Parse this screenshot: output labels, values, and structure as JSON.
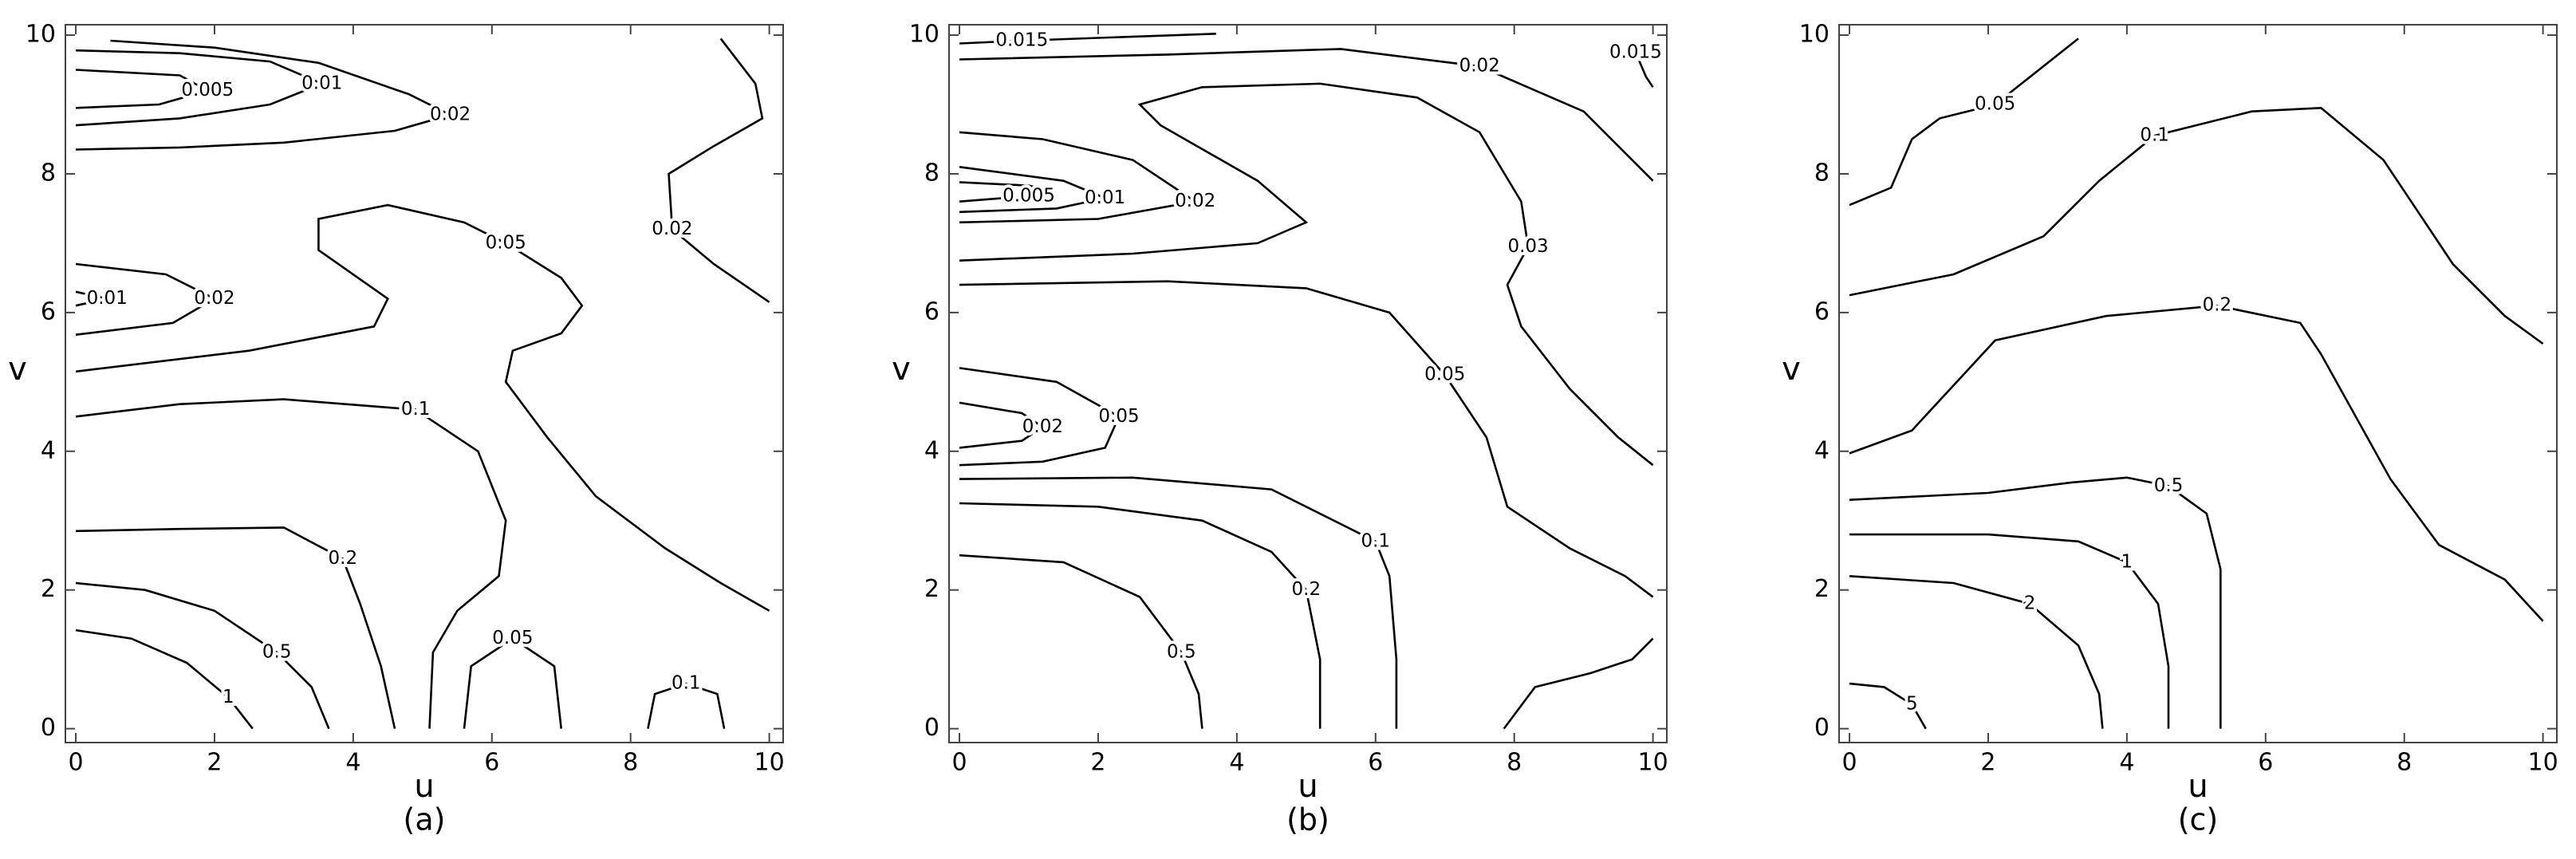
{
  "chart_data": [
    {
      "type": "contour",
      "caption": "(a)",
      "xlabel": "u",
      "ylabel": "v",
      "xlim": [
        -0.15,
        10.2
      ],
      "ylim": [
        -0.2,
        10.15
      ],
      "xticks": [
        0,
        2,
        4,
        6,
        8,
        10
      ],
      "yticks": [
        0,
        2,
        4,
        6,
        8,
        10
      ],
      "color": "#000000",
      "contours": [
        {
          "level": 0.005,
          "x": [
            0,
            1.2,
            1.9,
            1.5,
            0
          ],
          "y": [
            8.95,
            9.0,
            9.2,
            9.42,
            9.5
          ]
        },
        {
          "level": 0.01,
          "x": [
            0,
            0.45,
            0,
            null,
            0,
            1.5,
            2.8,
            3.55,
            2.8,
            1.5,
            0
          ],
          "y": [
            6.3,
            6.2,
            6.1,
            null,
            8.7,
            8.8,
            9.0,
            9.3,
            9.62,
            9.74,
            9.78
          ]
        },
        {
          "level": 0.02,
          "x": [
            0,
            1.3,
            2.0,
            1.4,
            0,
            null,
            0.5,
            2,
            3.5,
            4.8,
            5.4,
            4.6,
            3,
            1.5,
            0,
            null,
            9.3,
            9.8,
            9.9,
            9.2,
            8.55,
            8.6,
            9.2,
            10
          ],
          "y": [
            6.7,
            6.55,
            6.2,
            5.85,
            5.68,
            null,
            9.92,
            9.82,
            9.6,
            9.15,
            8.85,
            8.62,
            8.45,
            8.38,
            8.35,
            null,
            9.95,
            9.3,
            8.8,
            8.4,
            8.0,
            7.2,
            6.7,
            6.15
          ]
        },
        {
          "level": 0.05,
          "x": [
            0,
            2.5,
            4.3,
            4.5,
            3.5,
            3.5,
            4.5,
            5.6,
            6.2,
            7.0,
            7.3,
            7.0,
            6.3,
            6.2,
            6.8,
            7.5,
            8.5,
            9.3,
            10,
            null,
            5.6,
            5.7,
            6.3,
            6.9,
            7.0
          ],
          "y": [
            5.15,
            5.45,
            5.8,
            6.2,
            6.9,
            7.35,
            7.55,
            7.3,
            7.0,
            6.5,
            6.1,
            5.7,
            5.45,
            5.0,
            4.2,
            3.35,
            2.6,
            2.1,
            1.7,
            null,
            0,
            0.9,
            1.3,
            0.9,
            0
          ]
        },
        {
          "level": 0.1,
          "x": [
            0,
            1.5,
            3,
            4.9,
            5.8,
            6.2,
            6.1,
            5.5,
            5.15,
            5.1,
            null,
            8.25,
            8.35,
            8.8,
            9.25,
            9.35
          ],
          "y": [
            4.5,
            4.68,
            4.75,
            4.6,
            4.0,
            3.0,
            2.2,
            1.7,
            1.1,
            0,
            null,
            0,
            0.5,
            0.65,
            0.5,
            0
          ]
        },
        {
          "level": 0.2,
          "x": [
            0,
            1.5,
            3.0,
            3.85,
            4.1,
            4.4,
            4.6
          ],
          "y": [
            2.85,
            2.88,
            2.9,
            2.45,
            1.8,
            0.9,
            0
          ]
        },
        {
          "level": 0.5,
          "x": [
            0,
            1,
            2,
            2.9,
            3.4,
            3.65
          ],
          "y": [
            2.1,
            2.0,
            1.7,
            1.1,
            0.6,
            0
          ]
        },
        {
          "level": 1,
          "x": [
            0,
            0.8,
            1.6,
            2.2,
            2.55
          ],
          "y": [
            1.42,
            1.3,
            0.95,
            0.45,
            0
          ]
        }
      ]
    },
    {
      "type": "contour",
      "caption": "(b)",
      "xlabel": "u",
      "ylabel": "v",
      "xlim": [
        -0.15,
        10.2
      ],
      "ylim": [
        -0.2,
        10.15
      ],
      "xticks": [
        0,
        2,
        4,
        6,
        8,
        10
      ],
      "yticks": [
        0,
        2,
        4,
        6,
        8,
        10
      ],
      "color": "#000000",
      "contours": [
        {
          "level": 0.005,
          "x": [
            0,
            1.0,
            1.35,
            1.0,
            0
          ],
          "y": [
            7.6,
            7.68,
            7.75,
            7.83,
            7.88
          ]
        },
        {
          "level": 0.01,
          "x": [
            0,
            1.4,
            2.1,
            1.5,
            0
          ],
          "y": [
            7.45,
            7.5,
            7.65,
            7.9,
            8.1
          ]
        },
        {
          "level": 0.02,
          "x": [
            0,
            0.9,
            1.2,
            0.9,
            0,
            null,
            0,
            2,
            3.4,
            2.5,
            1.2,
            0,
            null,
            0,
            3,
            5.5,
            7.5,
            9,
            10
          ],
          "y": [
            4.7,
            4.55,
            4.35,
            4.15,
            4.05,
            null,
            7.3,
            7.35,
            7.6,
            8.2,
            8.5,
            8.6,
            null,
            9.65,
            9.72,
            9.8,
            9.55,
            8.9,
            7.9
          ]
        },
        {
          "level": 0.015,
          "x": [
            0,
            0.9,
            2,
            3.7,
            null,
            9.75,
            9.9,
            10
          ],
          "y": [
            9.88,
            9.92,
            9.96,
            10.02,
            null,
            9.75,
            9.4,
            9.25
          ]
        },
        {
          "level": 0.03,
          "x": [
            0,
            2.5,
            4.3,
            5.0,
            4.3,
            2.9,
            2.6,
            3.5,
            5.2,
            6.6,
            7.5,
            8.1,
            8.2,
            7.9,
            8.1,
            8.8,
            9.5,
            10
          ],
          "y": [
            6.75,
            6.85,
            7.0,
            7.3,
            7.9,
            8.7,
            9.0,
            9.25,
            9.3,
            9.1,
            8.6,
            7.6,
            6.95,
            6.4,
            5.8,
            4.9,
            4.2,
            3.8
          ]
        },
        {
          "level": 0.05,
          "x": [
            0,
            1.4,
            2.3,
            2.1,
            1.2,
            0,
            null,
            0,
            3,
            5,
            6.2,
            7.0,
            7.6,
            7.9,
            8.8,
            9.6,
            10
          ],
          "y": [
            5.2,
            5.0,
            4.5,
            4.05,
            3.85,
            3.8,
            null,
            6.4,
            6.45,
            6.35,
            6.0,
            5.1,
            4.2,
            3.2,
            2.6,
            2.2,
            1.9
          ]
        },
        {
          "level": 0.1,
          "x": [
            0,
            2.5,
            4.5,
            6.0,
            6.2,
            6.3,
            6.3,
            null,
            7.85,
            8.3,
            9.1,
            9.7,
            10
          ],
          "y": [
            3.6,
            3.62,
            3.45,
            2.7,
            2.2,
            1.0,
            0,
            null,
            0,
            0.6,
            0.8,
            1.0,
            1.3
          ]
        },
        {
          "level": 0.2,
          "x": [
            0,
            2,
            3.5,
            4.5,
            5.0,
            5.2,
            5.2
          ],
          "y": [
            3.25,
            3.2,
            3.0,
            2.55,
            2.0,
            1.0,
            0
          ]
        },
        {
          "level": 0.5,
          "x": [
            0,
            1.5,
            2.6,
            3.2,
            3.45,
            3.5
          ],
          "y": [
            2.5,
            2.4,
            1.9,
            1.1,
            0.5,
            0
          ]
        }
      ]
    },
    {
      "type": "contour",
      "caption": "(c)",
      "xlabel": "u",
      "ylabel": "v",
      "xlim": [
        -0.15,
        10.2
      ],
      "ylim": [
        -0.2,
        10.15
      ],
      "xticks": [
        0,
        2,
        4,
        6,
        8,
        10
      ],
      "yticks": [
        0,
        2,
        4,
        6,
        8,
        10
      ],
      "color": "#000000",
      "contours": [
        {
          "level": 0.05,
          "x": [
            0,
            0.6,
            0.9,
            1.3,
            2.1,
            3.3
          ],
          "y": [
            7.55,
            7.8,
            8.5,
            8.8,
            9.0,
            9.95
          ]
        },
        {
          "level": 0.1,
          "x": [
            0,
            1.5,
            2.8,
            3.6,
            4.4,
            5.8,
            6.8,
            7.7,
            8.7,
            9.45,
            10
          ],
          "y": [
            6.25,
            6.55,
            7.1,
            7.9,
            8.55,
            8.9,
            8.95,
            8.2,
            6.7,
            5.95,
            5.55
          ]
        },
        {
          "level": 0.2,
          "x": [
            0,
            0.9,
            1.5,
            2.1,
            3.7,
            5.3,
            6.5,
            6.8,
            7.8,
            8.5,
            9.45,
            10
          ],
          "y": [
            3.97,
            4.3,
            4.95,
            5.6,
            5.95,
            6.1,
            5.85,
            5.4,
            3.6,
            2.65,
            2.15,
            1.55
          ]
        },
        {
          "level": 0.5,
          "x": [
            0,
            2,
            3.2,
            4.0,
            4.6,
            5.15,
            5.35,
            5.35,
            5.35
          ],
          "y": [
            3.3,
            3.4,
            3.55,
            3.62,
            3.5,
            3.1,
            2.3,
            1.0,
            0
          ]
        },
        {
          "level": 1,
          "x": [
            0,
            2,
            3.3,
            4.0,
            4.45,
            4.6,
            4.6
          ],
          "y": [
            2.8,
            2.8,
            2.7,
            2.4,
            1.8,
            0.9,
            0
          ]
        },
        {
          "level": 2,
          "x": [
            0,
            1.5,
            2.6,
            3.3,
            3.6,
            3.65
          ],
          "y": [
            2.2,
            2.1,
            1.8,
            1.2,
            0.5,
            0
          ]
        },
        {
          "level": 5,
          "x": [
            0,
            0.5,
            0.9,
            1.1
          ],
          "y": [
            0.65,
            0.6,
            0.35,
            0
          ]
        }
      ]
    }
  ]
}
